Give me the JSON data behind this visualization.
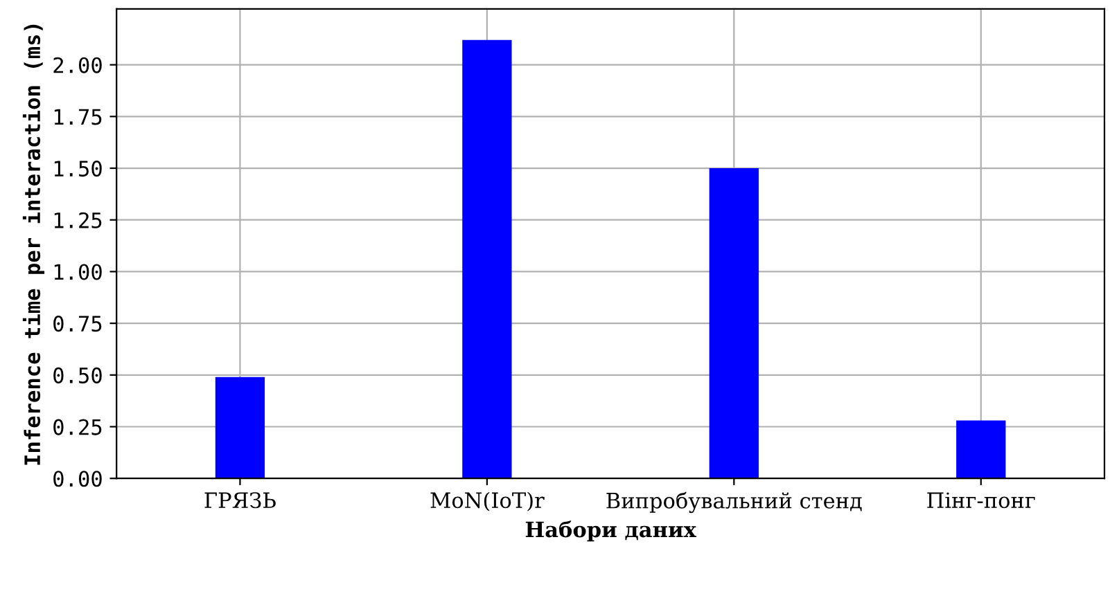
{
  "chart_data": {
    "type": "bar",
    "xlabel": "Набори даних",
    "ylabel": "Inference time per interaction (ms)",
    "categories": [
      "ГРЯЗЬ",
      "MoN(IoT)r",
      "Випробувальний стенд",
      "Пінг-понг"
    ],
    "values": [
      0.49,
      2.12,
      1.5,
      0.28
    ],
    "color": "#0000ff",
    "ylim": [
      0,
      2.27
    ],
    "yticks": [
      {
        "value": 0,
        "label": "0.00"
      },
      {
        "value": 0.25,
        "label": "0.25"
      },
      {
        "value": 0.5,
        "label": "0.50"
      },
      {
        "value": 0.75,
        "label": "0.75"
      },
      {
        "value": 1,
        "label": "1.00"
      },
      {
        "value": 1.25,
        "label": "1.25"
      },
      {
        "value": 1.5,
        "label": "1.50"
      },
      {
        "value": 1.75,
        "label": "1.75"
      },
      {
        "value": 2,
        "label": "2.00"
      }
    ],
    "grid": true
  }
}
